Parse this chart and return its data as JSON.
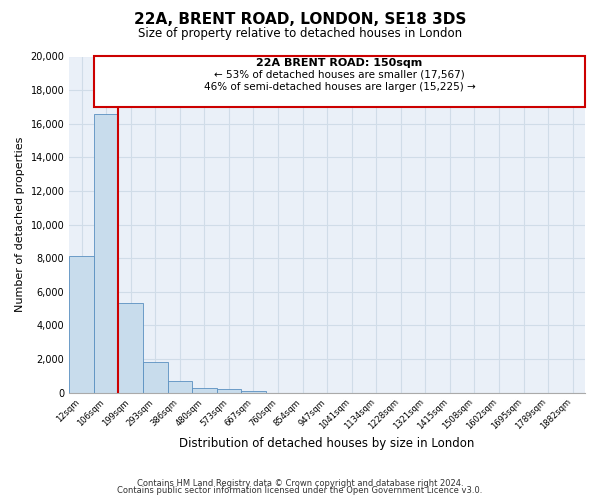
{
  "title": "22A, BRENT ROAD, LONDON, SE18 3DS",
  "subtitle": "Size of property relative to detached houses in London",
  "xlabel": "Distribution of detached houses by size in London",
  "ylabel": "Number of detached properties",
  "bar_color": "#c8dcec",
  "bar_edge_color": "#5a90c0",
  "highlight_color": "#cc0000",
  "categories": [
    "12sqm",
    "106sqm",
    "199sqm",
    "293sqm",
    "386sqm",
    "480sqm",
    "573sqm",
    "667sqm",
    "760sqm",
    "854sqm",
    "947sqm",
    "1041sqm",
    "1134sqm",
    "1228sqm",
    "1321sqm",
    "1415sqm",
    "1508sqm",
    "1602sqm",
    "1695sqm",
    "1789sqm",
    "1882sqm"
  ],
  "values": [
    8100,
    16600,
    5300,
    1800,
    700,
    300,
    200,
    100,
    0,
    0,
    0,
    0,
    0,
    0,
    0,
    0,
    0,
    0,
    0,
    0,
    0
  ],
  "ylim": [
    0,
    20000
  ],
  "yticks": [
    0,
    2000,
    4000,
    6000,
    8000,
    10000,
    12000,
    14000,
    16000,
    18000,
    20000
  ],
  "highlight_bar_index": 1,
  "annotation_title": "22A BRENT ROAD: 150sqm",
  "annotation_line1": "← 53% of detached houses are smaller (17,567)",
  "annotation_line2": "46% of semi-detached houses are larger (15,225) →",
  "footer1": "Contains HM Land Registry data © Crown copyright and database right 2024.",
  "footer2": "Contains public sector information licensed under the Open Government Licence v3.0.",
  "grid_color": "#d0dce8",
  "background_color": "#eaf0f8"
}
